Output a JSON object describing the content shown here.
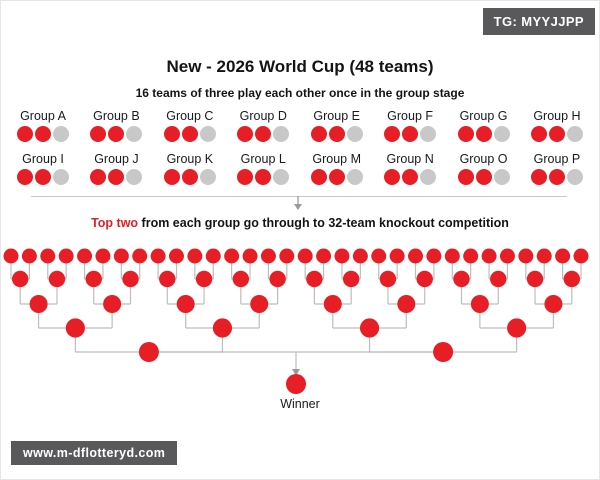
{
  "colors": {
    "red": "#e71e25",
    "gray": "#c8c8c8",
    "line": "#bdbdbd",
    "arrow": "#9a9a9a",
    "badge_bg": "#59595b",
    "text": "#141414"
  },
  "badges": {
    "telegram": "TG: MYYJJPP",
    "website": "www.m-dflotteryd.com"
  },
  "header": {
    "title": "New - 2026 World Cup (48 teams)",
    "subtitle": "16 teams of three play each other once in the group stage"
  },
  "groups": {
    "rows": [
      [
        "Group A",
        "Group B",
        "Group C",
        "Group D",
        "Group E",
        "Group F",
        "Group G",
        "Group H"
      ],
      [
        "Group I",
        "Group J",
        "Group K",
        "Group L",
        "Group M",
        "Group N",
        "Group O",
        "Group P"
      ]
    ],
    "dot_pattern": [
      "red",
      "red",
      "gray"
    ],
    "teams_per_group": 3
  },
  "knockout": {
    "caption_highlight": "Top two",
    "caption_rest": " from each group go through to 32-team knockout competition",
    "round_sizes": [
      32,
      16,
      8,
      4,
      2
    ],
    "winner_label": "Winner"
  }
}
